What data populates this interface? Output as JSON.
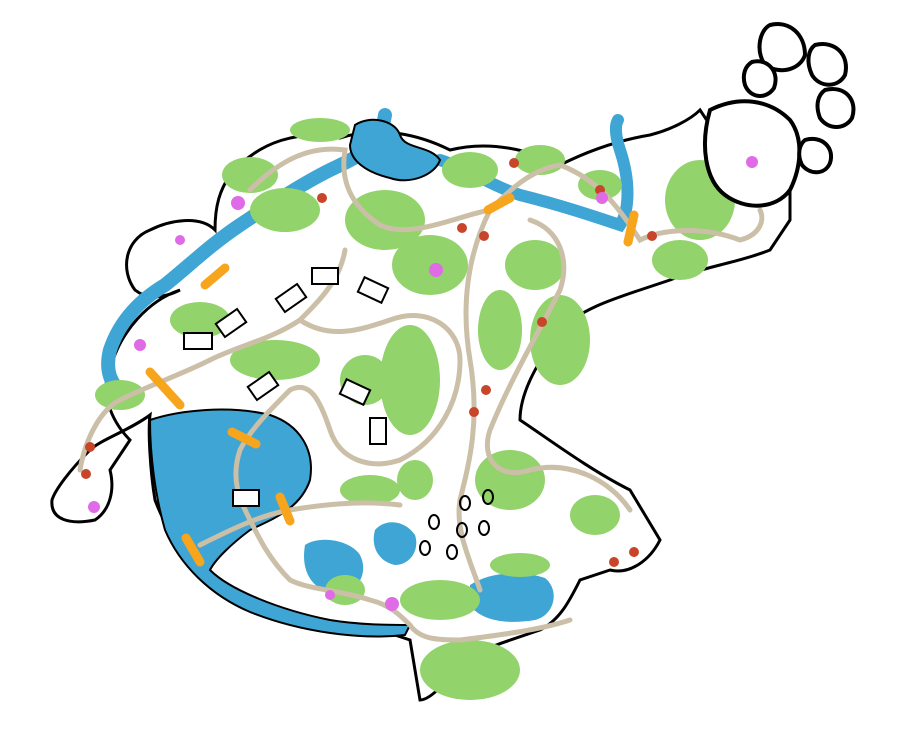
{
  "map": {
    "style": "hand-drawn fantasy village map",
    "features": [
      {
        "kind": "island-landmass",
        "icon": "landmass"
      },
      {
        "kind": "river",
        "icon": "river-icon"
      },
      {
        "kind": "lake",
        "icon": "lake-icon"
      },
      {
        "kind": "forest",
        "icon": "tree-cluster-icon"
      },
      {
        "kind": "road",
        "icon": "path-icon"
      },
      {
        "kind": "bridge",
        "icon": "bridge-icon"
      },
      {
        "kind": "house",
        "icon": "house-icon"
      },
      {
        "kind": "mountain-ruins",
        "icon": "mountain-icon"
      },
      {
        "kind": "berry-point",
        "icon": "red-dot-icon"
      },
      {
        "kind": "flower-point",
        "icon": "pink-dot-icon"
      },
      {
        "kind": "standing-stones",
        "icon": "stone-ring-icon"
      }
    ]
  },
  "colors": {
    "land": "#ffffff",
    "outline": "#000000",
    "water": "#3fa5d4",
    "forest": "#92d36b",
    "road": "#cbbfa7",
    "bridge": "#f7a51c",
    "berry": "#c8452a",
    "flower": "#e06be6"
  }
}
